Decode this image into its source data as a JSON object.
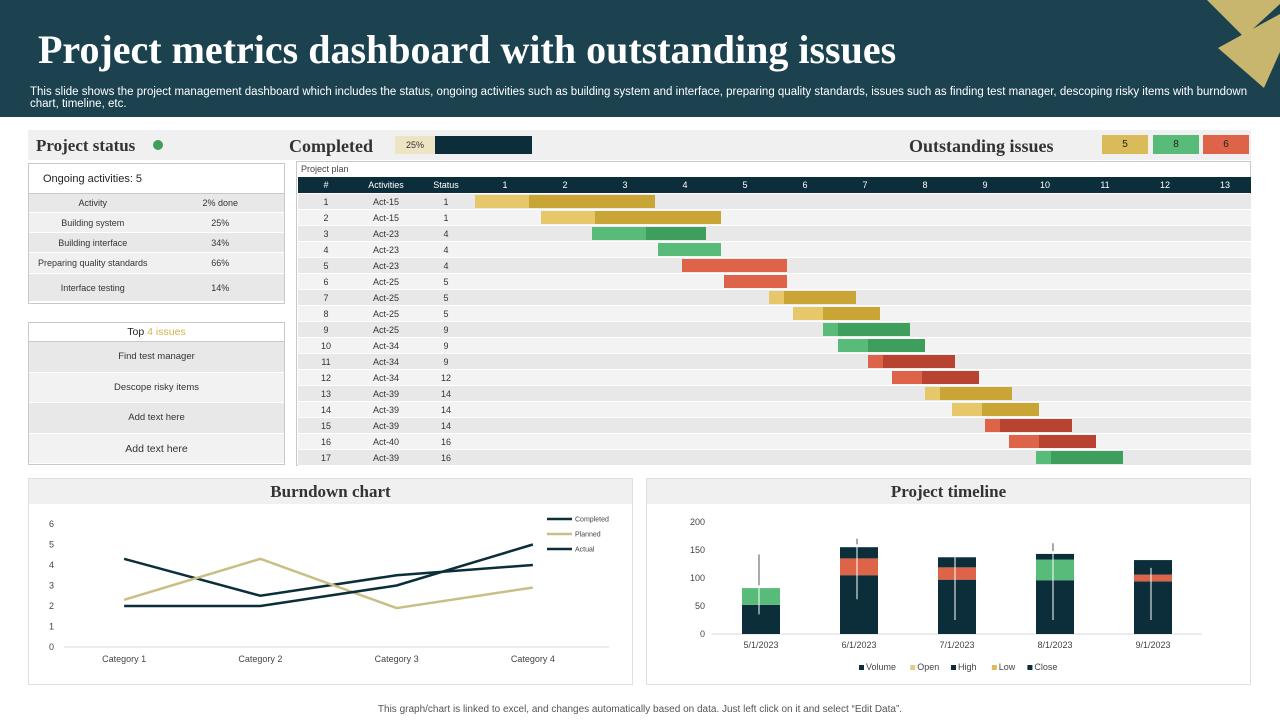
{
  "colors": {
    "header_bg": "#1c4250",
    "dark": "#0b2e3a",
    "gold": "#c8a534",
    "light_gold": "#e6c86a",
    "tan": "#dccd8a",
    "green": "#3e9e5c",
    "light_green": "#59bb7a",
    "red": "#b84331",
    "light_red": "#dd6449",
    "accent_corner": "#c9b66e"
  },
  "header": {
    "title": "Project metrics dashboard with outstanding issues",
    "subtitle": "This slide shows the project management dashboard which includes the status, ongoing activities such as building system and interface, preparing quality standards, issues such as finding test manager, descoping risky items with burndown chart, timeline, etc."
  },
  "status_bar": {
    "project_status_label": "Project status",
    "status_dot_color": "#3e9e5c",
    "completed_label": "Completed",
    "completed_pct": "25%",
    "completed_value": 0.25,
    "outstanding_label": "Outstanding issues",
    "issue_counts": [
      "5",
      "8",
      "6"
    ],
    "issue_colors": [
      "#d9bb5a",
      "#59bb7a",
      "#dd6449"
    ]
  },
  "activities": {
    "ongoing_label": "Ongoing activities: 5",
    "headers": [
      "Activity",
      "2% done"
    ],
    "rows": [
      [
        "Building system",
        "25%"
      ],
      [
        "Building interface",
        "34%"
      ],
      [
        "Preparing quality standards",
        "66%"
      ],
      [
        "Interface testing",
        "14%"
      ]
    ]
  },
  "top_issues": {
    "prefix": "Top ",
    "highlight": "4 issues",
    "items": [
      "Find test manager",
      "Descope risky items",
      "Add text here",
      "Add text here"
    ]
  },
  "gantt": {
    "caption": "Project plan",
    "columns": [
      "#",
      "Activities",
      "Status"
    ],
    "periods": [
      "1",
      "2",
      "3",
      "4",
      "5",
      "6",
      "7",
      "8",
      "9",
      "10",
      "11",
      "12",
      "13"
    ],
    "rows": [
      {
        "n": "1",
        "act": "Act-15",
        "status": "1",
        "start": 0,
        "done": 0.9,
        "rest": 2.1,
        "color": "gold"
      },
      {
        "n": "2",
        "act": "Act-15",
        "status": "1",
        "start": 1.1,
        "done": 0.9,
        "rest": 2.1,
        "color": "gold"
      },
      {
        "n": "3",
        "act": "Act-23",
        "status": "4",
        "start": 1.95,
        "done": 0.9,
        "rest": 1.0,
        "color": "green"
      },
      {
        "n": "4",
        "act": "Act-23",
        "status": "4",
        "start": 3.05,
        "done": 0,
        "rest": 1.05,
        "color": "green"
      },
      {
        "n": "5",
        "act": "Act-23",
        "status": "4",
        "start": 3.45,
        "done": 0,
        "rest": 1.75,
        "color": "red"
      },
      {
        "n": "6",
        "act": "Act-25",
        "status": "5",
        "start": 4.15,
        "done": 0,
        "rest": 1.05,
        "color": "red"
      },
      {
        "n": "7",
        "act": "Act-25",
        "status": "5",
        "start": 4.9,
        "done": 0.25,
        "rest": 1.2,
        "color": "gold"
      },
      {
        "n": "8",
        "act": "Act-25",
        "status": "5",
        "start": 5.3,
        "done": 0.5,
        "rest": 0.95,
        "color": "gold"
      },
      {
        "n": "9",
        "act": "Act-25",
        "status": "9",
        "start": 5.8,
        "done": 0.25,
        "rest": 1.2,
        "color": "green"
      },
      {
        "n": "10",
        "act": "Act-34",
        "status": "9",
        "start": 6.05,
        "done": 0.5,
        "rest": 0.95,
        "color": "green"
      },
      {
        "n": "11",
        "act": "Act-34",
        "status": "9",
        "start": 6.55,
        "done": 0.25,
        "rest": 1.2,
        "color": "red"
      },
      {
        "n": "12",
        "act": "Act-34",
        "status": "12",
        "start": 6.95,
        "done": 0.5,
        "rest": 0.95,
        "color": "red"
      },
      {
        "n": "13",
        "act": "Act-39",
        "status": "14",
        "start": 7.5,
        "done": 0.25,
        "rest": 1.2,
        "color": "gold"
      },
      {
        "n": "14",
        "act": "Act-39",
        "status": "14",
        "start": 7.95,
        "done": 0.5,
        "rest": 0.95,
        "color": "gold"
      },
      {
        "n": "15",
        "act": "Act-39",
        "status": "14",
        "start": 8.5,
        "done": 0.25,
        "rest": 1.2,
        "color": "red"
      },
      {
        "n": "16",
        "act": "Act-40",
        "status": "16",
        "start": 8.9,
        "done": 0.5,
        "rest": 0.95,
        "color": "red"
      },
      {
        "n": "17",
        "act": "Act-39",
        "status": "16",
        "start": 9.35,
        "done": 0.25,
        "rest": 1.2,
        "color": "green"
      }
    ]
  },
  "chart_data": [
    {
      "type": "line",
      "title": "Burndown chart",
      "categories": [
        "Category 1",
        "Category 2",
        "Category 3",
        "Category 4"
      ],
      "yticks": [
        "0",
        "1",
        "2",
        "3",
        "4",
        "5",
        "6"
      ],
      "ylim": [
        0,
        6
      ],
      "series": [
        {
          "name": "Completed",
          "values": [
            4.3,
            2.5,
            3.5,
            4.0
          ],
          "color": "#0b2e3a"
        },
        {
          "name": "Planned",
          "values": [
            2.3,
            4.3,
            1.9,
            2.9
          ],
          "color": "#c9bf85"
        },
        {
          "name": "Actual",
          "values": [
            2.0,
            2.0,
            3.0,
            5.0
          ],
          "color": "#0b2e3a"
        }
      ],
      "legend": "top-right"
    },
    {
      "type": "bar",
      "title": "Project timeline",
      "categories": [
        "5/1/2023",
        "6/1/2023",
        "7/1/2023",
        "8/1/2023",
        "9/1/2023"
      ],
      "yticks": [
        "0",
        "50",
        "100",
        "150",
        "200"
      ],
      "ylim": [
        0,
        200
      ],
      "series": [
        {
          "name": "Volume",
          "values": [
            52,
            105,
            97,
            96,
            94
          ],
          "color": "#0b2e3a"
        },
        {
          "name": "Open",
          "values": [
            30,
            30,
            22,
            37,
            12
          ],
          "color": "#dccd8a"
        },
        {
          "name": "High",
          "values": [
            0,
            20,
            18,
            10,
            26
          ],
          "color": "#0b2e3a"
        },
        {
          "name": "Low",
          "values": [
            0,
            0,
            0,
            0,
            0
          ],
          "color": "#d9bb5a"
        },
        {
          "name": "Close",
          "values": [
            0,
            0,
            0,
            0,
            0
          ],
          "color": "#0b2e3a"
        }
      ],
      "segment_colors": [
        "#0b2e3a",
        "#dd6449",
        "#0b2e3a"
      ],
      "first_segment_override": "#59bb7a",
      "whiskers": [
        [
          35,
          142
        ],
        [
          62,
          170
        ],
        [
          25,
          137
        ],
        [
          25,
          162
        ],
        [
          25,
          118
        ]
      ],
      "legend": "bottom"
    }
  ],
  "footer": "This graph/chart is linked to excel, and changes automatically based on data. Just left click on it and select “Edit Data”."
}
